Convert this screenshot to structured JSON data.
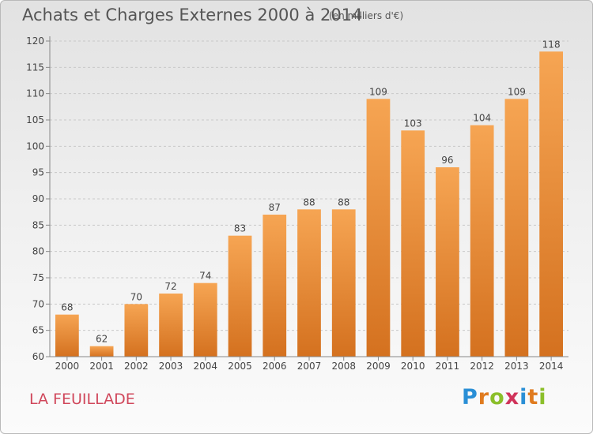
{
  "header": {
    "title": "Achats et Charges Externes 2000 à 2014",
    "subtitle": "(en milliers d'€)"
  },
  "footer": {
    "commune": "LA FEUILLADE",
    "logo_letters": [
      "P",
      "r",
      "o",
      "x",
      "i",
      "t",
      "i"
    ],
    "logo_colors": [
      "#2a8fd6",
      "#e07b1f",
      "#8bbf2a",
      "#d0335a",
      "#2a8fd6",
      "#e07b1f",
      "#8bbf2a"
    ]
  },
  "colors": {
    "bar_light": "#f6a553",
    "bar_dark": "#d4711f",
    "axis": "#888888",
    "grid": "#c8c8c8",
    "label": "#444444"
  },
  "chart_data": {
    "type": "bar",
    "categories": [
      "2000",
      "2001",
      "2002",
      "2003",
      "2004",
      "2005",
      "2006",
      "2007",
      "2008",
      "2009",
      "2010",
      "2011",
      "2012",
      "2013",
      "2014"
    ],
    "values": [
      68,
      62,
      70,
      72,
      74,
      83,
      87,
      88,
      88,
      109,
      103,
      96,
      104,
      109,
      118
    ],
    "ylim": [
      60,
      120
    ],
    "yticks": [
      60,
      65,
      70,
      75,
      80,
      85,
      90,
      95,
      100,
      105,
      110,
      115,
      120
    ],
    "grid": "horizontal dashed",
    "title": "Achats et Charges Externes 2000 à 2014",
    "xlabel": "",
    "ylabel": ""
  }
}
